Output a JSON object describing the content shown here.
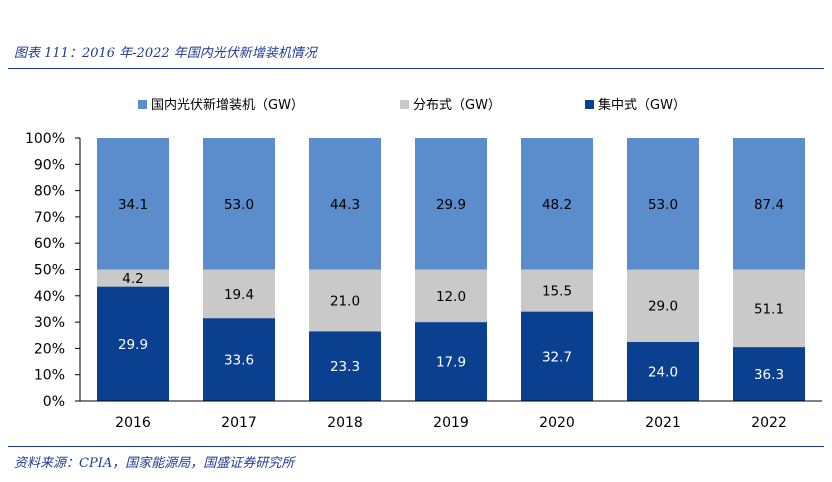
{
  "figure": {
    "title": "图表 111：2016 年-2022 年国内光伏新增装机情况",
    "source": "资料来源：CPIA，国家能源局，国盛证券研究所"
  },
  "chart_data": {
    "type": "bar",
    "stacked": true,
    "normalized": true,
    "categories": [
      "2016",
      "2017",
      "2018",
      "2019",
      "2020",
      "2021",
      "2022"
    ],
    "series": [
      {
        "name": "集中式（GW）",
        "color": "#0b3f8f",
        "values": [
          29.9,
          33.6,
          23.3,
          17.9,
          32.7,
          24.0,
          36.3
        ]
      },
      {
        "name": "分布式（GW）",
        "color": "#c9c9c9",
        "values": [
          4.2,
          19.4,
          21.0,
          12.0,
          15.5,
          29.0,
          51.1
        ]
      },
      {
        "name": "国内光伏新增装机（GW）",
        "color": "#5b8ccc",
        "values": [
          34.1,
          53.0,
          44.3,
          29.9,
          48.2,
          53.0,
          87.4
        ]
      }
    ],
    "legend_order": [
      2,
      1,
      0
    ],
    "segment_shares": [
      [
        0.435,
        0.065,
        0.5
      ],
      [
        0.315,
        0.185,
        0.5
      ],
      [
        0.265,
        0.235,
        0.5
      ],
      [
        0.3,
        0.2,
        0.5
      ],
      [
        0.34,
        0.16,
        0.5
      ],
      [
        0.225,
        0.275,
        0.5
      ],
      [
        0.205,
        0.295,
        0.5
      ]
    ],
    "y_ticks": [
      "0%",
      "10%",
      "20%",
      "30%",
      "40%",
      "50%",
      "60%",
      "70%",
      "80%",
      "90%",
      "100%"
    ],
    "ylim": [
      0,
      100
    ],
    "legend_position": "top",
    "grid": false
  }
}
